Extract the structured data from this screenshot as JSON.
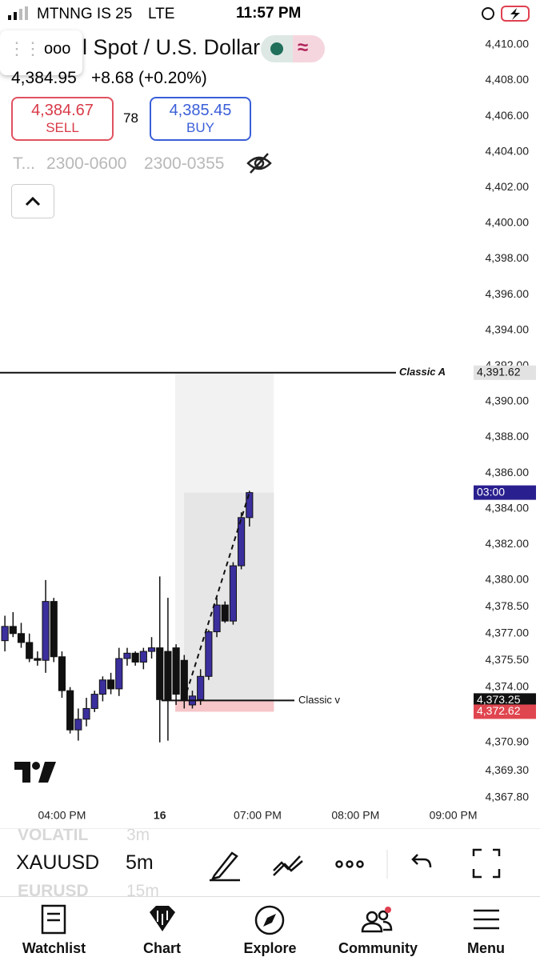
{
  "status_bar": {
    "carrier": "MTNNG IS 25",
    "network": "LTE",
    "time": "11:57 PM"
  },
  "header": {
    "title": "l Spot / U.S. Dollar",
    "price": "4,384.95",
    "change": "+8.68 (+0.20%)",
    "sell_price": "4,384.67",
    "sell_label": "SELL",
    "spread": "78",
    "buy_price": "4,385.45",
    "buy_label": "BUY",
    "sessions": [
      "T...",
      "2300-0600",
      "2300-0355"
    ]
  },
  "chart_data": {
    "type": "candlestick",
    "ylim": [
      4366.9,
      4411.7
    ],
    "yticks": [
      {
        "value": 4410,
        "label": "4,410.00"
      },
      {
        "value": 4408,
        "label": "4,408.00"
      },
      {
        "value": 4406,
        "label": "4,406.00"
      },
      {
        "value": 4404,
        "label": "4,404.00"
      },
      {
        "value": 4402,
        "label": "4,402.00"
      },
      {
        "value": 4400,
        "label": "4,400.00"
      },
      {
        "value": 4398,
        "label": "4,398.00"
      },
      {
        "value": 4396,
        "label": "4,396.00"
      },
      {
        "value": 4394,
        "label": "4,394.00"
      },
      {
        "value": 4392,
        "label": "4,392.00"
      },
      {
        "value": 4390,
        "label": "4,390.00"
      },
      {
        "value": 4388,
        "label": "4,388.00"
      },
      {
        "value": 4386,
        "label": "4,386.00"
      },
      {
        "value": 4384,
        "label": "4,384.00"
      },
      {
        "value": 4382,
        "label": "4,382.00"
      },
      {
        "value": 4380,
        "label": "4,380.00"
      },
      {
        "value": 4378.5,
        "label": "4,378.50"
      },
      {
        "value": 4377,
        "label": "4,377.00"
      },
      {
        "value": 4375.5,
        "label": "4,375.50"
      },
      {
        "value": 4374,
        "label": "4,374.00"
      },
      {
        "value": 4370.9,
        "label": "4,370.90"
      },
      {
        "value": 4369.3,
        "label": "4,369.30"
      },
      {
        "value": 4367.8,
        "label": "4,367.80"
      }
    ],
    "xlim": [
      -0.6,
      57.3
    ],
    "xticks": [
      {
        "value": 7,
        "label": "04:00 PM"
      },
      {
        "value": 19,
        "label": "16"
      },
      {
        "value": 31,
        "label": "07:00 PM"
      },
      {
        "value": 43,
        "label": "08:00 PM"
      },
      {
        "value": 55,
        "label": "09:00 PM"
      }
    ],
    "up_color": "#3b2f9e",
    "down_color": "#111111",
    "candles": {
      "x": [
        0,
        1,
        2,
        3,
        4,
        5,
        6,
        7,
        8,
        9,
        10,
        11,
        12,
        13,
        14,
        15,
        16,
        17,
        18,
        19,
        20,
        21,
        22,
        23,
        24,
        25,
        26,
        27,
        28,
        29,
        30
      ],
      "open": [
        4376.6,
        4377.4,
        4377.0,
        4376.5,
        4375.6,
        4375.5,
        4378.8,
        4375.7,
        4373.8,
        4371.6,
        4372.2,
        4372.8,
        4373.6,
        4374.4,
        4373.9,
        4375.6,
        4375.9,
        4375.4,
        4376.0,
        4376.2,
        4376.0,
        4376.2,
        4375.5,
        4373.0,
        4373.3,
        4374.6,
        4377.1,
        4378.6,
        4377.7,
        4380.8,
        4383.5
      ],
      "high": [
        4378.0,
        4378.2,
        4377.6,
        4377.0,
        4376.0,
        4380.0,
        4379.0,
        4376.0,
        4374.0,
        4372.8,
        4373.4,
        4373.8,
        4374.6,
        4374.8,
        4376.2,
        4376.2,
        4376.0,
        4376.2,
        4376.8,
        4380.2,
        4379.0,
        4376.4,
        4375.8,
        4373.8,
        4375.0,
        4377.2,
        4379.0,
        4378.8,
        4381.0,
        4383.8,
        4385.0
      ],
      "low": [
        4376.0,
        4376.8,
        4376.2,
        4375.4,
        4375.2,
        4374.8,
        4375.4,
        4373.4,
        4371.4,
        4371.0,
        4371.8,
        4372.6,
        4373.2,
        4373.6,
        4373.5,
        4375.2,
        4375.2,
        4375.0,
        4375.6,
        4370.9,
        4371.0,
        4373.0,
        4372.8,
        4372.8,
        4373.0,
        4374.4,
        4376.8,
        4377.6,
        4377.5,
        4380.6,
        4383.0
      ],
      "close": [
        4377.4,
        4377.0,
        4376.5,
        4375.6,
        4375.5,
        4378.8,
        4375.7,
        4373.8,
        4371.6,
        4372.2,
        4372.8,
        4373.6,
        4374.4,
        4373.9,
        4375.6,
        4375.9,
        4375.4,
        4376.0,
        4376.2,
        4373.3,
        4373.3,
        4373.6,
        4373.3,
        4373.5,
        4374.6,
        4377.1,
        4378.6,
        4377.7,
        4380.8,
        4383.5,
        4384.9
      ]
    },
    "horizontal_line": {
      "value": 4391.62,
      "label": "Classic A",
      "axis_label": "4,391.62"
    },
    "position": {
      "x": [
        20.9,
        33
      ],
      "target": 4391.62,
      "entry": 4373.25,
      "stop": 4372.62,
      "start": 19.2,
      "label": "Classic v",
      "entry_label": "4,373.25",
      "stop_label": "4,372.62"
    },
    "countdown": {
      "value": 4384.9,
      "label": "03:00"
    }
  },
  "toolbar": {
    "symbols": [
      "VOLATIL",
      "XAUUSD",
      "EURUSD"
    ],
    "intervals": [
      "3m",
      "5m",
      "15m"
    ]
  },
  "nav": [
    "Watchlist",
    "Chart",
    "Explore",
    "Community",
    "Menu"
  ]
}
